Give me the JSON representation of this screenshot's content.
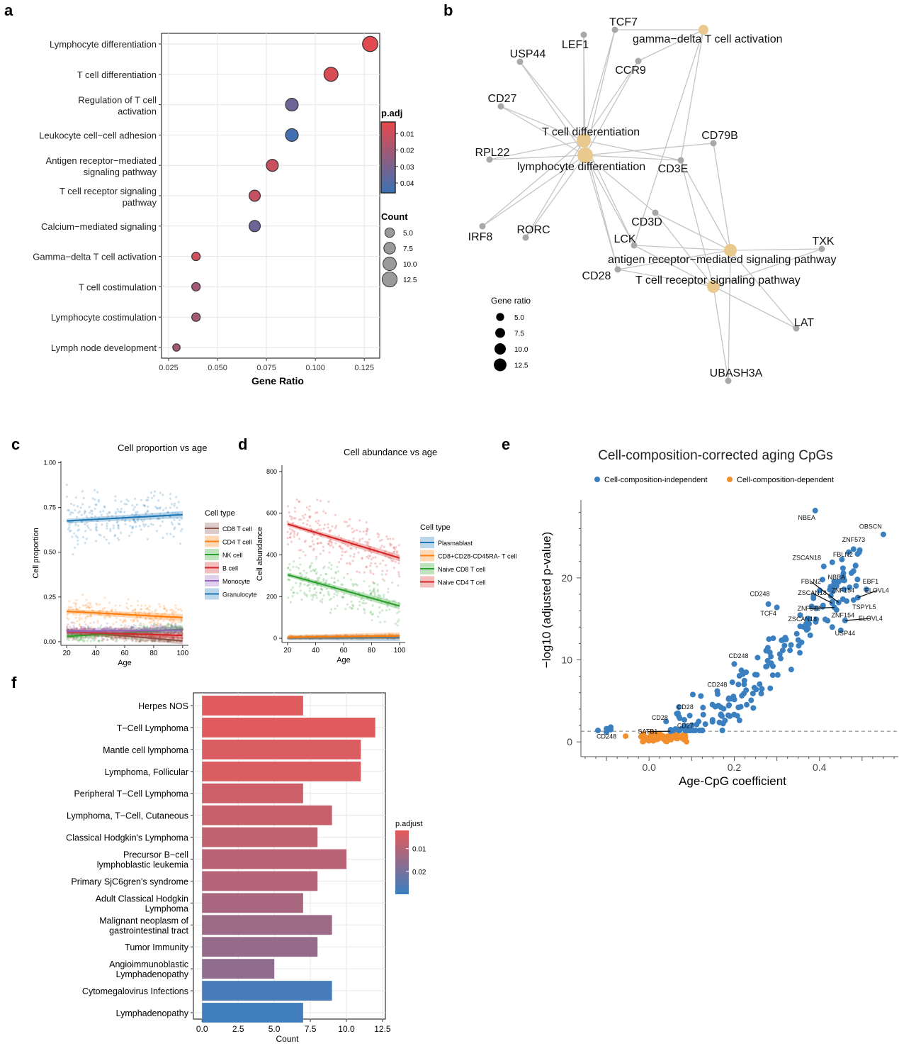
{
  "panels": {
    "a": "a",
    "b": "b",
    "c": "c",
    "d": "d",
    "e": "e",
    "f": "f"
  },
  "chart_data": [
    {
      "id": "a",
      "type": "scatter",
      "title": "",
      "xlabel": "Gene Ratio",
      "ylabel": "",
      "xlim": [
        0.025,
        0.13
      ],
      "xticks": [
        0.025,
        0.05,
        0.075,
        0.1,
        0.125
      ],
      "xtick_labels": [
        "0.025",
        "0.050",
        "0.075",
        "0.100",
        "0.125"
      ],
      "points": [
        {
          "term": "Lymphocyte differentiation",
          "lines": [
            "Lymphocyte differentiation"
          ],
          "gene_ratio": 0.128,
          "count": 13,
          "p_adj": 0.005
        },
        {
          "term": "T cell differentiation",
          "lines": [
            "T cell differentiation"
          ],
          "gene_ratio": 0.108,
          "count": 11,
          "p_adj": 0.007
        },
        {
          "term": "Regulation of T cell activation",
          "lines": [
            "Regulation of T cell",
            "activation"
          ],
          "gene_ratio": 0.088,
          "count": 9,
          "p_adj": 0.034
        },
        {
          "term": "Leukocyte cell-cell adhesion",
          "lines": [
            "Leukocyte cell−cell adhesion"
          ],
          "gene_ratio": 0.088,
          "count": 9,
          "p_adj": 0.044
        },
        {
          "term": "Antigen receptor-mediated signaling pathway",
          "lines": [
            "Antigen receptor−mediated",
            "signaling pathway"
          ],
          "gene_ratio": 0.078,
          "count": 8,
          "p_adj": 0.011
        },
        {
          "term": "T cell receptor signaling pathway",
          "lines": [
            "T cell receptor signaling",
            "pathway"
          ],
          "gene_ratio": 0.069,
          "count": 7,
          "p_adj": 0.012
        },
        {
          "term": "Calcium-mediated signaling",
          "lines": [
            "Calcium−mediated signaling"
          ],
          "gene_ratio": 0.069,
          "count": 7,
          "p_adj": 0.034
        },
        {
          "term": "Gamma-delta T cell activation",
          "lines": [
            "Gamma−delta T cell activation"
          ],
          "gene_ratio": 0.039,
          "count": 4,
          "p_adj": 0.01
        },
        {
          "term": "T cell costimulation",
          "lines": [
            "T cell costimulation"
          ],
          "gene_ratio": 0.039,
          "count": 4,
          "p_adj": 0.02
        },
        {
          "term": "Lymphocyte costimulation",
          "lines": [
            "Lymphocyte costimulation"
          ],
          "gene_ratio": 0.039,
          "count": 4,
          "p_adj": 0.02
        },
        {
          "term": "Lymph node development",
          "lines": [
            "Lymph node development"
          ],
          "gene_ratio": 0.029,
          "count": 3,
          "p_adj": 0.02
        }
      ],
      "color_legend": {
        "title": "p.adj",
        "ticks": [
          "0.01",
          "0.02",
          "0.03",
          "0.04"
        ],
        "tick_values": [
          0.01,
          0.02,
          0.03,
          0.04
        ],
        "range": [
          0.003,
          0.046
        ],
        "low_color": "#e8484b",
        "high_color": "#3a72b5"
      },
      "size_legend": {
        "title": "Count",
        "labels": [
          "5.0",
          "7.5",
          "10.0",
          "12.5"
        ],
        "values": [
          5,
          7.5,
          10,
          12.5
        ]
      }
    },
    {
      "id": "b",
      "type": "network",
      "terms": [
        {
          "id": "gd",
          "label": "gamma−delta T cell activation"
        },
        {
          "id": "tcd",
          "label": "T cell differentiation"
        },
        {
          "id": "lymd",
          "label": "lymphocyte differentiation"
        },
        {
          "id": "ars",
          "label": "antigen receptor−mediated signaling pathway"
        },
        {
          "id": "tcr",
          "label": "T cell receptor signaling pathway"
        }
      ],
      "genes": [
        "TCF7",
        "LEF1",
        "USP44",
        "CCR9",
        "CD27",
        "RPL22",
        "CD79B",
        "CD3E",
        "IRF8",
        "RORC",
        "CD3D",
        "LCK",
        "CD28",
        "TXK",
        "LAT",
        "UBASH3A"
      ],
      "edges": [
        [
          "gd",
          "TCF7"
        ],
        [
          "gd",
          "CCR9"
        ],
        [
          "gd",
          "CD3E"
        ],
        [
          "gd",
          "LCK"
        ],
        [
          "tcd",
          "TCF7"
        ],
        [
          "tcd",
          "LEF1"
        ],
        [
          "tcd",
          "USP44"
        ],
        [
          "tcd",
          "CCR9"
        ],
        [
          "tcd",
          "CD27"
        ],
        [
          "tcd",
          "RPL22"
        ],
        [
          "tcd",
          "CD3E"
        ],
        [
          "tcd",
          "IRF8"
        ],
        [
          "tcd",
          "RORC"
        ],
        [
          "tcd",
          "LCK"
        ],
        [
          "tcd",
          "CD28"
        ],
        [
          "lymd",
          "TCF7"
        ],
        [
          "lymd",
          "LEF1"
        ],
        [
          "lymd",
          "USP44"
        ],
        [
          "lymd",
          "CCR9"
        ],
        [
          "lymd",
          "CD27"
        ],
        [
          "lymd",
          "RPL22"
        ],
        [
          "lymd",
          "CD79B"
        ],
        [
          "lymd",
          "CD3E"
        ],
        [
          "lymd",
          "IRF8"
        ],
        [
          "lymd",
          "RORC"
        ],
        [
          "lymd",
          "CD3D"
        ],
        [
          "lymd",
          "LCK"
        ],
        [
          "lymd",
          "CD28"
        ],
        [
          "ars",
          "CD79B"
        ],
        [
          "ars",
          "CD3E"
        ],
        [
          "ars",
          "CD3D"
        ],
        [
          "ars",
          "LCK"
        ],
        [
          "ars",
          "CD28"
        ],
        [
          "ars",
          "TXK"
        ],
        [
          "ars",
          "LAT"
        ],
        [
          "ars",
          "UBASH3A"
        ],
        [
          "tcr",
          "CD3E"
        ],
        [
          "tcr",
          "CD3D"
        ],
        [
          "tcr",
          "LCK"
        ],
        [
          "tcr",
          "CD28"
        ],
        [
          "tcr",
          "TXK"
        ],
        [
          "tcr",
          "LAT"
        ],
        [
          "tcr",
          "UBASH3A"
        ]
      ],
      "size_legend": {
        "title": "Gene ratio",
        "labels": [
          "5.0",
          "7.5",
          "10.0",
          "12.5"
        ],
        "values": [
          5,
          7.5,
          10,
          12.5
        ]
      }
    },
    {
      "id": "c",
      "type": "scatter",
      "title": "Cell proportion vs age",
      "xlabel": "Age",
      "ylabel": "Cell proportion",
      "xlim": [
        16,
        104
      ],
      "ylim": [
        -0.02,
        1.01
      ],
      "xticks": [
        20,
        40,
        60,
        80,
        100
      ],
      "yticks": [
        0,
        0.25,
        0.5,
        0.75,
        1.0
      ],
      "ytick_labels": [
        "0.00",
        "0.25",
        "0.50",
        "0.75",
        "1.00"
      ],
      "legend_title": "Cell type",
      "series": [
        {
          "name": "CD8 T cell",
          "color": "#8c564b",
          "fit": [
            [
              20,
              0.06
            ],
            [
              100,
              0.005
            ]
          ],
          "mean": 0.04,
          "sd": 0.03
        },
        {
          "name": "CD4 T cell",
          "color": "#ff7f0e",
          "fit": [
            [
              20,
              0.17
            ],
            [
              100,
              0.135
            ]
          ],
          "mean": 0.15,
          "sd": 0.05
        },
        {
          "name": "NK cell",
          "color": "#2ca02c",
          "fit": [
            [
              20,
              0.03
            ],
            [
              100,
              0.07
            ]
          ],
          "mean": 0.05,
          "sd": 0.03
        },
        {
          "name": "B cell",
          "color": "#d62728",
          "fit": [
            [
              20,
              0.055
            ],
            [
              100,
              0.035
            ]
          ],
          "mean": 0.045,
          "sd": 0.025
        },
        {
          "name": "Monocyte",
          "color": "#9467bd",
          "fit": [
            [
              20,
              0.06
            ],
            [
              100,
              0.065
            ]
          ],
          "mean": 0.06,
          "sd": 0.025
        },
        {
          "name": "Granulocyte",
          "color": "#1f77b4",
          "fit": [
            [
              20,
              0.675
            ],
            [
              100,
              0.71
            ]
          ],
          "mean": 0.69,
          "sd": 0.1
        }
      ]
    },
    {
      "id": "d",
      "type": "scatter",
      "title": "Cell abundance vs age",
      "xlabel": "Age",
      "ylabel": "Cell abundance",
      "xlim": [
        16,
        104
      ],
      "ylim": [
        -20,
        830
      ],
      "xticks": [
        20,
        40,
        60,
        80,
        100
      ],
      "yticks": [
        0,
        200,
        400,
        600,
        800
      ],
      "legend_title": "Cell type",
      "series": [
        {
          "name": "Plasmablast",
          "color": "#1f77b4",
          "fit": [
            [
              20,
              2
            ],
            [
              100,
              3
            ]
          ],
          "mean": 3,
          "sd": 3
        },
        {
          "name": "CD8+CD28-CD45RA- T cell",
          "color": "#ff7f0e",
          "fit": [
            [
              20,
              5
            ],
            [
              100,
              12
            ]
          ],
          "mean": 9,
          "sd": 6
        },
        {
          "name": "Naive CD8 T cell",
          "color": "#2ca02c",
          "fit": [
            [
              20,
              305
            ],
            [
              100,
              155
            ]
          ],
          "mean": 0,
          "sd": 75
        },
        {
          "name": "Naive CD4 T cell",
          "color": "#d62728",
          "fit": [
            [
              20,
              548
            ],
            [
              100,
              385
            ]
          ],
          "mean": 0,
          "sd": 95
        }
      ]
    },
    {
      "id": "e",
      "type": "scatter",
      "title": "Cell-composition-corrected aging CpGs",
      "xlabel": "Age-CpG coefficient",
      "ylabel": "−log10 (adjusted p-value)",
      "xlim": [
        -0.16,
        0.585
      ],
      "ylim": [
        -1.8,
        29.5
      ],
      "xticks": [
        0.0,
        0.2,
        0.4
      ],
      "xtick_labels": [
        "0.0",
        "0.2",
        "0.4"
      ],
      "yticks": [
        0,
        10,
        20
      ],
      "threshold": 1.3,
      "series": [
        {
          "name": "Cell-composition-independent",
          "color": "#3a7fbf"
        },
        {
          "name": "Cell-composition-dependent",
          "color": "#f28e2b"
        }
      ],
      "labeled_points": [
        {
          "x": 0.39,
          "y": 28.2,
          "label": "NBEA",
          "lx": 0.37,
          "ly": 27.1
        },
        {
          "x": 0.55,
          "y": 25.3,
          "label": "OBSCN",
          "lx": 0.52,
          "ly": 26.0
        },
        {
          "x": 0.48,
          "y": 23.5,
          "label": "ZNF573",
          "lx": 0.48,
          "ly": 24.4
        },
        {
          "x": 0.43,
          "y": 21.9,
          "label": "FBLN2",
          "lx": 0.455,
          "ly": 22.6
        },
        {
          "x": 0.41,
          "y": 21.4,
          "label": "ZSCAN18",
          "lx": 0.37,
          "ly": 22.2
        },
        {
          "x": 0.44,
          "y": 19.0,
          "label": "NBEA",
          "lx": 0.44,
          "ly": 19.8
        },
        {
          "x": 0.51,
          "y": 18.6,
          "label": "EBF1",
          "lx": 0.52,
          "ly": 19.3
        },
        {
          "x": 0.49,
          "y": 17.6,
          "label": "ELOVL4",
          "lx": 0.535,
          "ly": 18.2,
          "leader": true
        },
        {
          "x": 0.445,
          "y": 17.0,
          "label": "FBLN2",
          "lx": 0.38,
          "ly": 19.3,
          "leader": true
        },
        {
          "x": 0.43,
          "y": 16.9,
          "label": "ZSCAN18",
          "lx": 0.383,
          "ly": 17.9,
          "leader": true
        },
        {
          "x": 0.455,
          "y": 17.4,
          "label": "ZNF154",
          "lx": 0.455,
          "ly": 18.2
        },
        {
          "x": 0.435,
          "y": 16.4,
          "label": "ZNF573",
          "lx": 0.375,
          "ly": 16.0,
          "leader": true
        },
        {
          "x": 0.48,
          "y": 17.3,
          "label": "TSPYL5",
          "lx": 0.505,
          "ly": 16.2
        },
        {
          "x": 0.44,
          "y": 16.1,
          "label": "ZNF154",
          "lx": 0.455,
          "ly": 15.2
        },
        {
          "x": 0.46,
          "y": 14.8,
          "label": "ELOVL4",
          "lx": 0.52,
          "ly": 14.8,
          "leader": true
        },
        {
          "x": 0.43,
          "y": 14.0,
          "label": "ZSCAN18",
          "lx": 0.36,
          "ly": 14.7
        },
        {
          "x": 0.45,
          "y": 13.6,
          "label": "USP44",
          "lx": 0.46,
          "ly": 13.0
        },
        {
          "x": 0.28,
          "y": 16.8,
          "label": "CD248",
          "lx": 0.26,
          "ly": 17.8
        },
        {
          "x": 0.3,
          "y": 16.4,
          "label": "TCF4",
          "lx": 0.28,
          "ly": 15.4
        },
        {
          "x": 0.2,
          "y": 9.5,
          "label": "CD248",
          "lx": 0.21,
          "ly": 10.2
        },
        {
          "x": 0.16,
          "y": 6.2,
          "label": "CD248",
          "lx": 0.16,
          "ly": 6.7
        },
        {
          "x": 0.07,
          "y": 3.1,
          "label": "CD28",
          "lx": 0.085,
          "ly": 4.0
        },
        {
          "x": 0.04,
          "y": 2.5,
          "label": "CD28",
          "lx": 0.025,
          "ly": 2.7
        },
        {
          "x": 0.09,
          "y": 1.8,
          "label": "CD27",
          "lx": 0.085,
          "ly": 1.7
        },
        {
          "x": 0.05,
          "y": 1.3,
          "label": "SATB1",
          "lx": -0.003,
          "ly": 1.0,
          "leader": true
        },
        {
          "x": -0.09,
          "y": 1.5,
          "label": "CD248",
          "lx": -0.1,
          "ly": 0.4
        }
      ]
    },
    {
      "id": "f",
      "type": "bar",
      "orientation": "horizontal",
      "xlabel": "Count",
      "xlim": [
        -0.6,
        12.7
      ],
      "xticks": [
        0,
        2.5,
        5,
        7.5,
        10,
        12.5
      ],
      "xtick_labels": [
        "0.0",
        "2.5",
        "5.0",
        "7.5",
        "10.0",
        "12.5"
      ],
      "categories": [
        {
          "label": "Herpes NOS",
          "lines": [
            "Herpes NOS"
          ],
          "count": 7,
          "p_adjust": 0.003
        },
        {
          "label": "T−Cell Lymphoma",
          "lines": [
            "T−Cell Lymphoma"
          ],
          "count": 12,
          "p_adjust": 0.003
        },
        {
          "label": "Mantle cell lymphoma",
          "lines": [
            "Mantle cell lymphoma"
          ],
          "count": 11,
          "p_adjust": 0.004
        },
        {
          "label": "Lymphoma, Follicular",
          "lines": [
            "Lymphoma, Follicular"
          ],
          "count": 11,
          "p_adjust": 0.004
        },
        {
          "label": "Peripheral T−Cell Lymphoma",
          "lines": [
            "Peripheral T−Cell Lymphoma"
          ],
          "count": 7,
          "p_adjust": 0.006
        },
        {
          "label": "Lymphoma, T−Cell, Cutaneous",
          "lines": [
            "Lymphoma, T−Cell, Cutaneous"
          ],
          "count": 9,
          "p_adjust": 0.007
        },
        {
          "label": "Classical Hodgkin's Lymphoma",
          "lines": [
            "Classical Hodgkin's Lymphoma"
          ],
          "count": 8,
          "p_adjust": 0.008
        },
        {
          "label": "Precursor B−cell lymphoblastic leukemia",
          "lines": [
            "Precursor B−cell",
            "lymphoblastic leukemia"
          ],
          "count": 10,
          "p_adjust": 0.009
        },
        {
          "label": "Primary SjC6gren's syndrome",
          "lines": [
            "Primary SjC6gren's syndrome"
          ],
          "count": 8,
          "p_adjust": 0.01
        },
        {
          "label": "Adult Classical Hodgkin Lymphoma",
          "lines": [
            "Adult Classical Hodgkin",
            "Lymphoma"
          ],
          "count": 7,
          "p_adjust": 0.012
        },
        {
          "label": "Malignant neoplasm of gastrointestinal tract",
          "lines": [
            "Malignant neoplasm of",
            "gastrointestinal tract"
          ],
          "count": 9,
          "p_adjust": 0.014
        },
        {
          "label": "Tumor Immunity",
          "lines": [
            "Tumor Immunity"
          ],
          "count": 8,
          "p_adjust": 0.015
        },
        {
          "label": "Angioimmunoblastic Lymphadenopathy",
          "lines": [
            "Angioimmunoblastic",
            "Lymphadenopathy"
          ],
          "count": 5,
          "p_adjust": 0.016
        },
        {
          "label": "Cytomegalovirus Infections",
          "lines": [
            "Cytomegalovirus Infections"
          ],
          "count": 9,
          "p_adjust": 0.028
        },
        {
          "label": "Lymphadenopathy",
          "lines": [
            "Lymphadenopathy"
          ],
          "count": 7,
          "p_adjust": 0.029
        }
      ],
      "color_legend": {
        "title": "p.adjust",
        "ticks": [
          "0.01",
          "0.02"
        ],
        "tick_values": [
          0.01,
          0.02
        ],
        "range": [
          0.002,
          0.03
        ],
        "low_color": "#e55a5a",
        "high_color": "#3a7fc1"
      }
    }
  ]
}
